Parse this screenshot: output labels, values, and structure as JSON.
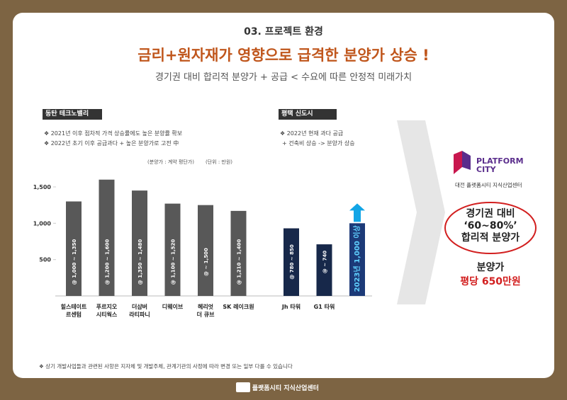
{
  "header": {
    "section": "03. 프로젝트 환경",
    "title": "금리+원자재가 영향으로 급격한 분양가 상승 !",
    "subtitle": "경기권 대비 합리적 분양가 + 공급 < 수요에 따른 안정적 미래가치"
  },
  "left_panel": {
    "label": "동탄 테크노밸리",
    "bullets": [
      "❖  2021년 이후 점차적 가격 상승률에도 높은 분양률 확보",
      "❖  2022년 초기 이후 공급과다 + 높은 분양가로 고전 中"
    ]
  },
  "right_panel": {
    "label": "평택 신도시",
    "bullets": [
      "❖  2022년 현재 과다 공급",
      "+ 건축비 상승 -> 분양가 상승"
    ]
  },
  "chart_data": {
    "type": "bar",
    "notes": [
      "(분양가 : 계약 평단가)",
      "(단위 : 만원)"
    ],
    "categories": [
      "힐스테이트\n르센텀",
      "푸르지오\n시티웍스",
      "더샵버\n라티파니",
      "디웨이브",
      "헤리엇\n더 큐브",
      "SK 레이크원",
      "Jh 타워",
      "G1 타워",
      null
    ],
    "values": [
      1300,
      1600,
      1450,
      1270,
      1250,
      1170,
      930,
      710,
      1000
    ],
    "range_labels": [
      "@ 1,000 ~ 1,350",
      "@ 1,200 ~ 1,600",
      "@ 1,350 ~ 1,480",
      "@ 1,100 ~ 1,520",
      "@ ~ 1,500",
      "@ 1,210 ~ 1,400",
      "@ 780 ~ 850",
      "@ ~ 740",
      "2023년 1,000 이상"
    ],
    "colors": [
      "#585858",
      "#585858",
      "#585858",
      "#585858",
      "#585858",
      "#585858",
      "#17284a",
      "#17284a",
      "#1c3a78"
    ],
    "ylim": [
      0,
      1500
    ],
    "yticks": [
      {
        "value": 500,
        "label": "500"
      },
      {
        "value": 1000,
        "label": "1,000"
      },
      {
        "value": 1500,
        "label": "1,500"
      }
    ]
  },
  "side": {
    "logo": "PLATFORM\nCITY",
    "logo_sub": "대전 플랫폼시티 지식산업센터",
    "compare": "경기권 대비\n‘60~80%’\n합리적 분양가",
    "price_label": "분양가",
    "price": "평당 650만원"
  },
  "footer": {
    "note": "❖  상기 개발사업들과 관련된 사항은 지자체 및 개발주체, 관계기관의 사정에 따라 변경 또는 일부 다를 수 있습니다",
    "brand": "대전 플랫폼시티 지식산업센터"
  }
}
